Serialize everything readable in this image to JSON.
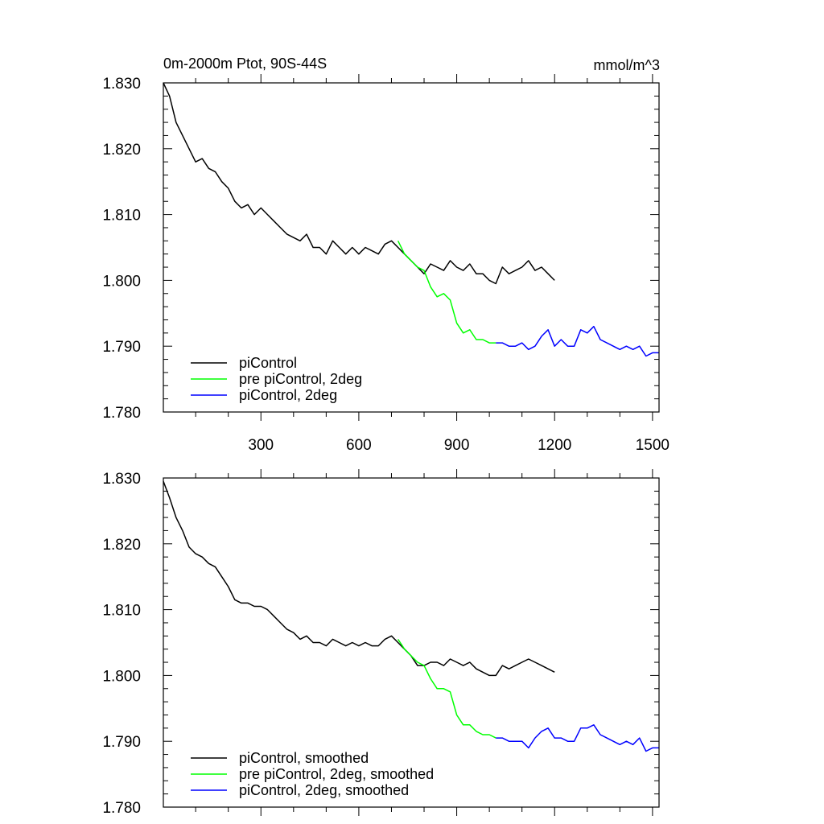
{
  "chart_data": [
    {
      "type": "line",
      "title": "0m-2000m Ptot, 90S-44S",
      "units": "mmol/m^3",
      "xlim": [
        1,
        1520
      ],
      "ylim": [
        1.78,
        1.83
      ],
      "yticks": [
        "1.830",
        "1.820",
        "1.810",
        "1.800",
        "1.790",
        "1.780"
      ],
      "xticks": [
        "300",
        "600",
        "900",
        "1200",
        "1500"
      ],
      "xtick_values": [
        300,
        600,
        900,
        1200,
        1500
      ],
      "legend": [
        "piControl",
        "pre piControl, 2deg",
        "piControl, 2deg"
      ],
      "legend_position": "bottom-left",
      "series": [
        {
          "name": "piControl",
          "color": "#000000",
          "x": [
            1,
            20,
            40,
            60,
            80,
            100,
            120,
            140,
            160,
            180,
            200,
            220,
            240,
            260,
            280,
            300,
            320,
            340,
            360,
            380,
            400,
            420,
            440,
            460,
            480,
            500,
            520,
            540,
            560,
            580,
            600,
            620,
            640,
            660,
            680,
            700,
            720,
            740,
            760,
            780,
            800,
            820,
            840,
            860,
            880,
            900,
            920,
            940,
            960,
            980,
            1000,
            1020,
            1040,
            1060,
            1080,
            1100,
            1120,
            1140,
            1160,
            1180,
            1200
          ],
          "y": [
            1.83,
            1.828,
            1.824,
            1.822,
            1.82,
            1.818,
            1.8185,
            1.817,
            1.8165,
            1.815,
            1.814,
            1.812,
            1.811,
            1.8115,
            1.81,
            1.811,
            1.81,
            1.809,
            1.808,
            1.807,
            1.8065,
            1.806,
            1.807,
            1.805,
            1.805,
            1.804,
            1.806,
            1.805,
            1.804,
            1.805,
            1.804,
            1.805,
            1.8045,
            1.804,
            1.8055,
            1.806,
            1.805,
            1.804,
            1.803,
            1.802,
            1.801,
            1.8025,
            1.802,
            1.8015,
            1.803,
            1.802,
            1.8015,
            1.8025,
            1.801,
            1.801,
            1.8,
            1.7995,
            1.802,
            1.801,
            1.8015,
            1.802,
            1.803,
            1.8015,
            1.802,
            1.801,
            1.8
          ]
        },
        {
          "name": "pre piControl, 2deg",
          "color": "#00ff00",
          "x": [
            720,
            740,
            760,
            780,
            800,
            820,
            840,
            860,
            880,
            900,
            920,
            940,
            960,
            980,
            1000,
            1020
          ],
          "y": [
            1.806,
            1.804,
            1.803,
            1.802,
            1.8015,
            1.799,
            1.7975,
            1.798,
            1.797,
            1.7935,
            1.792,
            1.7925,
            1.791,
            1.791,
            1.7905,
            1.7905
          ]
        },
        {
          "name": "piControl, 2deg",
          "color": "#0000ff",
          "x": [
            1020,
            1040,
            1060,
            1080,
            1100,
            1120,
            1140,
            1160,
            1180,
            1200,
            1220,
            1240,
            1260,
            1280,
            1300,
            1320,
            1340,
            1360,
            1380,
            1400,
            1420,
            1440,
            1460,
            1480,
            1500,
            1520
          ],
          "y": [
            1.7905,
            1.7905,
            1.79,
            1.79,
            1.7905,
            1.7895,
            1.79,
            1.7915,
            1.7925,
            1.79,
            1.791,
            1.79,
            1.79,
            1.7925,
            1.792,
            1.793,
            1.791,
            1.7905,
            1.79,
            1.7895,
            1.79,
            1.7895,
            1.79,
            1.7885,
            1.789,
            1.789
          ]
        }
      ]
    },
    {
      "type": "line",
      "title": "",
      "units": "",
      "xlim": [
        1,
        1520
      ],
      "ylim": [
        1.78,
        1.83
      ],
      "yticks": [
        "1.830",
        "1.820",
        "1.810",
        "1.800",
        "1.790",
        "1.780"
      ],
      "xticks": [],
      "xtick_values": [
        300,
        600,
        900,
        1200,
        1500
      ],
      "legend": [
        "piControl, smoothed",
        "pre piControl, 2deg, smoothed",
        "piControl, 2deg, smoothed"
      ],
      "legend_position": "bottom-left",
      "series": [
        {
          "name": "piControl, smoothed",
          "color": "#000000",
          "x": [
            1,
            20,
            40,
            60,
            80,
            100,
            120,
            140,
            160,
            180,
            200,
            220,
            240,
            260,
            280,
            300,
            320,
            340,
            360,
            380,
            400,
            420,
            440,
            460,
            480,
            500,
            520,
            540,
            560,
            580,
            600,
            620,
            640,
            660,
            680,
            700,
            720,
            740,
            760,
            780,
            800,
            820,
            840,
            860,
            880,
            900,
            920,
            940,
            960,
            980,
            1000,
            1020,
            1040,
            1060,
            1080,
            1100,
            1120,
            1140,
            1160,
            1180,
            1200
          ],
          "y": [
            1.8295,
            1.827,
            1.824,
            1.822,
            1.8195,
            1.8185,
            1.818,
            1.817,
            1.8165,
            1.815,
            1.8135,
            1.8115,
            1.811,
            1.811,
            1.8105,
            1.8105,
            1.81,
            1.809,
            1.808,
            1.807,
            1.8065,
            1.8055,
            1.806,
            1.805,
            1.805,
            1.8045,
            1.8055,
            1.805,
            1.8045,
            1.805,
            1.8045,
            1.805,
            1.8045,
            1.8045,
            1.8055,
            1.806,
            1.805,
            1.804,
            1.803,
            1.8015,
            1.8015,
            1.802,
            1.802,
            1.8015,
            1.8025,
            1.802,
            1.8015,
            1.802,
            1.801,
            1.8005,
            1.8,
            1.8,
            1.8015,
            1.801,
            1.8015,
            1.802,
            1.8025,
            1.802,
            1.8015,
            1.801,
            1.8005
          ]
        },
        {
          "name": "pre piControl, 2deg, smoothed",
          "color": "#00ff00",
          "x": [
            720,
            740,
            760,
            780,
            800,
            820,
            840,
            860,
            880,
            900,
            920,
            940,
            960,
            980,
            1000,
            1020
          ],
          "y": [
            1.8055,
            1.804,
            1.803,
            1.802,
            1.8015,
            1.7995,
            1.798,
            1.798,
            1.7975,
            1.794,
            1.7925,
            1.7925,
            1.7915,
            1.791,
            1.791,
            1.7905
          ]
        },
        {
          "name": "piControl, 2deg, smoothed",
          "color": "#0000ff",
          "x": [
            1020,
            1040,
            1060,
            1080,
            1100,
            1120,
            1140,
            1160,
            1180,
            1200,
            1220,
            1240,
            1260,
            1280,
            1300,
            1320,
            1340,
            1360,
            1380,
            1400,
            1420,
            1440,
            1460,
            1480,
            1500,
            1520
          ],
          "y": [
            1.7905,
            1.7905,
            1.79,
            1.79,
            1.79,
            1.789,
            1.7905,
            1.7915,
            1.792,
            1.7905,
            1.7905,
            1.79,
            1.79,
            1.792,
            1.792,
            1.7925,
            1.791,
            1.7905,
            1.79,
            1.7895,
            1.79,
            1.7895,
            1.7905,
            1.7885,
            1.789,
            1.789
          ]
        }
      ]
    }
  ]
}
